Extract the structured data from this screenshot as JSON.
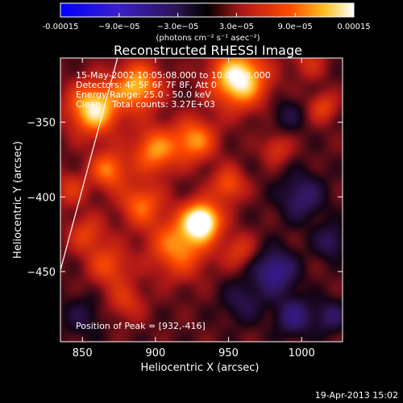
{
  "chart_data": {
    "type": "heatmap",
    "title": "Reconstructed RHESSI Image",
    "xlabel": "Heliocentric X (arcsec)",
    "ylabel": "Heliocentric Y (arcsec)",
    "xlim": [
      835,
      1028
    ],
    "ylim": [
      -497,
      -307
    ],
    "x_ticks": [
      850,
      900,
      950,
      1000
    ],
    "y_ticks": [
      -450,
      -400,
      -350
    ],
    "colorbar": {
      "units": "(photons cm⁻² s⁻¹ asec⁻²)",
      "range": [
        -0.00015,
        0.00015
      ],
      "tick_labels": [
        "-0.00015",
        "−9.0e−05",
        "−3.0e−05",
        "3.0e−05",
        "9.0e−05",
        "0.00015"
      ],
      "tick_values": [
        -0.00015,
        -9e-05,
        -3e-05,
        3e-05,
        9e-05,
        0.00015
      ]
    },
    "annotations": [
      "15-May-2002 10:05:08.000 to 10:08:18.000",
      "Detectors: 4F 5F 6F 7F 8F, Att 0",
      "Energy Range: 25.0 - 50.0 keV",
      "Clean    Total counts: 3.27E+03"
    ],
    "peak_label": "Position of Peak = [932,-416]",
    "peak": [
      932,
      -416
    ],
    "limb_line": [
      [
        835,
        -449
      ],
      [
        874,
        -307
      ]
    ],
    "blobs": [
      [
        932,
        -416,
        9,
        1.0
      ],
      [
        858,
        -341,
        12,
        0.85
      ],
      [
        888,
        -326,
        11,
        0.7
      ],
      [
        957,
        -321,
        13,
        0.95
      ],
      [
        900,
        -369,
        11,
        0.6
      ],
      [
        868,
        -382,
        9,
        0.55
      ],
      [
        927,
        -362,
        10,
        0.6
      ],
      [
        890,
        -405,
        10,
        0.5
      ],
      [
        950,
        -392,
        8,
        0.45
      ],
      [
        916,
        -433,
        14,
        0.6
      ],
      [
        868,
        -446,
        10,
        0.4
      ],
      [
        853,
        -425,
        9,
        0.35
      ],
      [
        957,
        -436,
        8,
        0.3
      ],
      [
        880,
        -470,
        9,
        0.3
      ],
      [
        842,
        -395,
        8,
        0.3
      ],
      [
        983,
        -368,
        7,
        0.3
      ],
      [
        1015,
        -340,
        7,
        0.35
      ],
      [
        1005,
        -310,
        8,
        0.25
      ],
      [
        982,
        -450,
        10,
        -0.5
      ],
      [
        1000,
        -400,
        11,
        -0.35
      ],
      [
        995,
        -480,
        9,
        -0.4
      ],
      [
        960,
        -470,
        10,
        -0.25
      ],
      [
        1020,
        -430,
        8,
        -0.3
      ],
      [
        990,
        -345,
        8,
        -0.2
      ],
      [
        1020,
        -480,
        8,
        -0.3
      ],
      [
        850,
        -480,
        10,
        -0.2
      ]
    ],
    "background_level": 0.1
  },
  "footer": {
    "timestamp": "19-Apr-2013 15:02"
  }
}
